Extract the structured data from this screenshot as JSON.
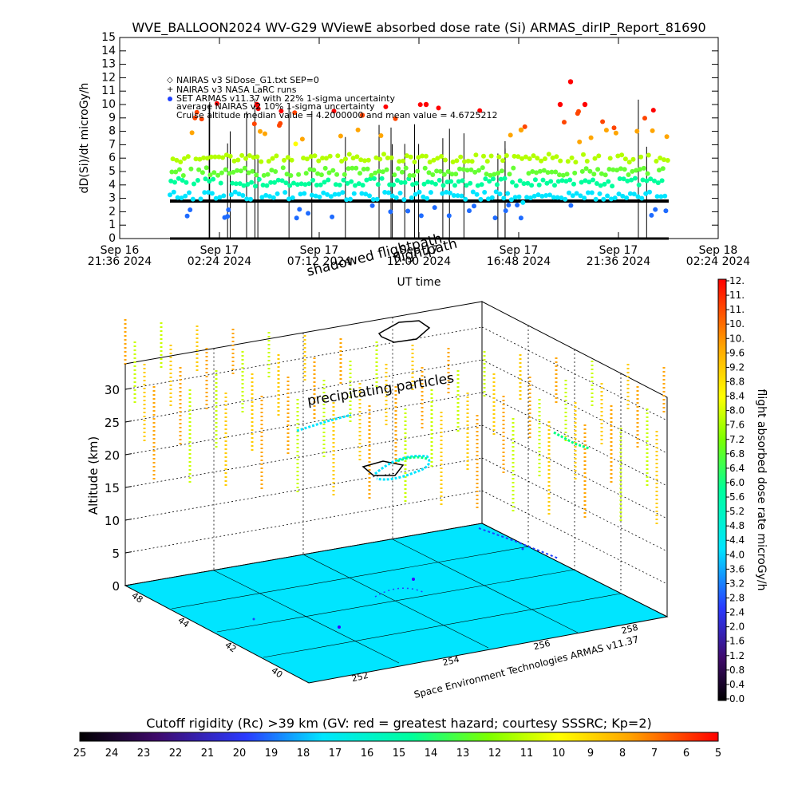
{
  "chart_data": [
    {
      "type": "scatter",
      "title": "WVE_BALLOON2024 WV-G29 WViewE absorbed dose rate (Si) ARMAS_dirIP_Report_81690",
      "ylabel": "dD(Si)/dt microGy/h",
      "xlabel": "UT time",
      "ylim": [
        0,
        15
      ],
      "yticks": [
        "0",
        "1",
        "2",
        "3",
        "4",
        "5",
        "6",
        "7",
        "8",
        "9",
        "10",
        "11",
        "12",
        "13",
        "14",
        "15"
      ],
      "xticks": [
        {
          "l1": "Sep 16",
          "l2": "21:36 2024"
        },
        {
          "l1": "Sep 17",
          "l2": "02:24 2024"
        },
        {
          "l1": "Sep 17",
          "l2": "07:12 2024"
        },
        {
          "l1": "Sep 17",
          "l2": "12:00 2024"
        },
        {
          "l1": "Sep 17",
          "l2": "16:48 2024"
        },
        {
          "l1": "Sep 17",
          "l2": "21:36 2024"
        },
        {
          "l1": "Sep 18",
          "l2": "02:24 2024"
        }
      ],
      "legend": [
        "NAIRAS v3 SiDose_G1.txt SEP=0",
        "NAIRAS v3 NASA LaRC runs",
        "SET ARMAS v11.37 with 22% 1-sigma uncertainty",
        "average NAIRAS v2 10% 1-sigma uncertainty",
        "Cruise altitude median value = 4.2000000 and mean value = 4.6725212"
      ],
      "legend_placement": "top-left",
      "median": 4.2,
      "mean": 4.6725212,
      "nairas_baseline": 2.8,
      "overlay_text": [
        "flightpath",
        "shadowed flightpath"
      ],
      "marker_colors": [
        "#ffa500",
        "#9acd32",
        "#ffff00",
        "#00ff7f",
        "#00e5ff",
        "#1e90ff",
        "#3f00ff",
        "#7f00ff",
        "#ff4500",
        "#ff0000"
      ]
    },
    {
      "type": "heatmap",
      "zlabel": "Altitude (km)",
      "zticks": [
        "0",
        "5",
        "10",
        "15",
        "20",
        "25",
        "30"
      ],
      "lat_ticks": [
        "48",
        "44",
        "42",
        "40"
      ],
      "lon_ticks": [
        "252",
        "254",
        "256",
        "258"
      ],
      "annotation": "precipitating particles",
      "credit": "Space Environment Technologies ARMAS v11.37",
      "floor_color": "#00e5ff"
    },
    {
      "type": "heatmap",
      "colorbar_label": "flight absorbed dose rate microGy/h",
      "colorbar_ticks": [
        "0.0",
        "0.4",
        "0.8",
        "1.2",
        "1.6",
        "2.0",
        "2.4",
        "2.8",
        "3.2",
        "3.6",
        "4.0",
        "4.4",
        "4.8",
        "5.2",
        "5.6",
        "6.0",
        "6.4",
        "6.8",
        "7.2",
        "7.6",
        "8.0",
        "8.4",
        "8.8",
        "9.2",
        "9.6",
        "10.",
        "10.",
        "11.",
        "11.",
        "12."
      ]
    },
    {
      "type": "heatmap",
      "colorbar_label": "Cutoff rigidity (Rc) >39 km (GV: red = greatest hazard; courtesy SSSRC; Kp=2)",
      "colorbar_ticks": [
        "25",
        "24",
        "23",
        "22",
        "21",
        "20",
        "19",
        "18",
        "17",
        "16",
        "15",
        "14",
        "13",
        "12",
        "11",
        "10",
        "9",
        "8",
        "7",
        "6",
        "5"
      ]
    }
  ]
}
